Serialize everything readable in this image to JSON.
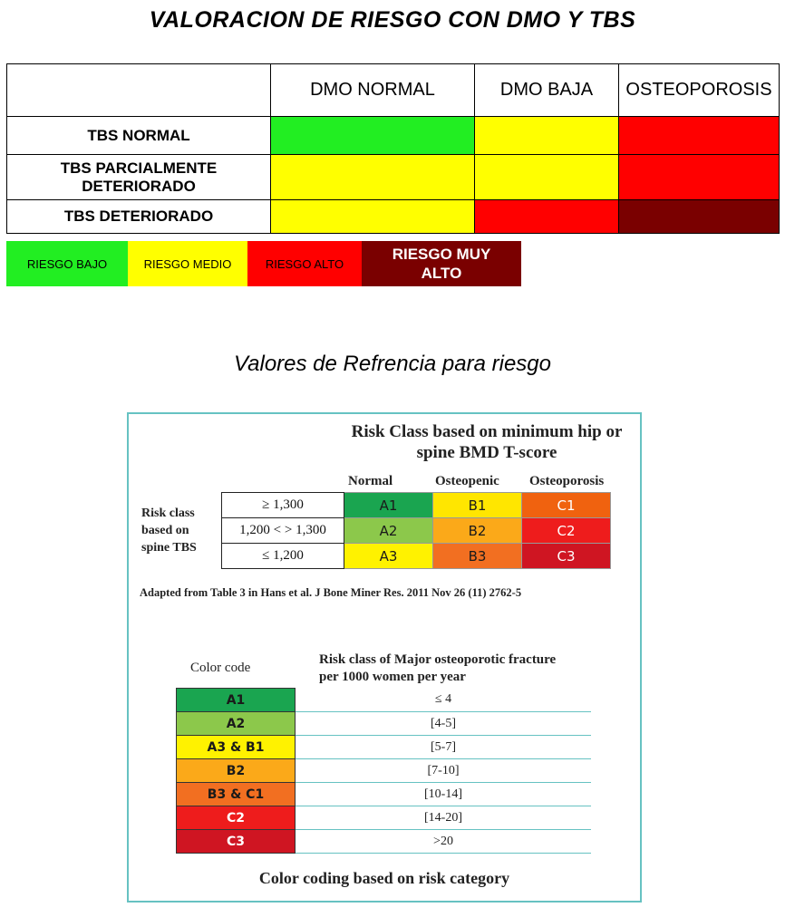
{
  "title": "VALORACION DE RIESGO CON DMO Y TBS",
  "risk_table": {
    "headers": [
      "",
      "DMO NORMAL",
      "DMO BAJA",
      "OSTEOPOROSIS"
    ],
    "rows": [
      {
        "label": "TBS NORMAL",
        "cells": [
          "#22ee22",
          "#ffff00",
          "#ff0000"
        ]
      },
      {
        "label": "TBS PARCIALMENTE DETERIORADO",
        "cells": [
          "#ffff00",
          "#ffff00",
          "#ff0000"
        ]
      },
      {
        "label": "TBS DETERIORADO",
        "cells": [
          "#ffff00",
          "#ff0000",
          "#7a0000"
        ]
      }
    ]
  },
  "legend": [
    {
      "label": "RIESGO BAJO",
      "color": "#22ee22"
    },
    {
      "label": "RIESGO MEDIO",
      "color": "#ffff00"
    },
    {
      "label": "RIESGO ALTO",
      "color": "#ff0000"
    },
    {
      "label": "RIESGO MUY ALTO",
      "color": "#7a0000"
    }
  ],
  "subtitle": "Valores de Refrencia para riesgo",
  "panel": {
    "title": "Risk Class based on minimum hip or spine BMD T-score",
    "columns": [
      "Normal",
      "Osteopenic",
      "Osteoporosis"
    ],
    "row_label": "Risk class based on spine TBS",
    "thresholds": [
      "≥ 1,300",
      "1,200 < > 1,300",
      "≤ 1,200"
    ],
    "grid": [
      [
        {
          "code": "A1",
          "color": "#1aa550"
        },
        {
          "code": "B1",
          "color": "#ffe600"
        },
        {
          "code": "C1",
          "color": "#f0620f"
        }
      ],
      [
        {
          "code": "A2",
          "color": "#8cc84b"
        },
        {
          "code": "B2",
          "color": "#fba919"
        },
        {
          "code": "C2",
          "color": "#ee1c1c"
        }
      ],
      [
        {
          "code": "A3",
          "color": "#fff200"
        },
        {
          "code": "B3",
          "color": "#f26f21"
        },
        {
          "code": "C3",
          "color": "#cf1522"
        }
      ]
    ],
    "adapted": "Adapted from Table 3 in Hans et al. J Bone Miner Res. 2011 Nov 26 (11) 2762-5",
    "color_code_header": "Color code",
    "risk_header": "Risk class of Major osteoporotic fracture per 1000 women per year",
    "color_codes": [
      {
        "code": "A1",
        "value": "≤ 4",
        "color": "#1aa550"
      },
      {
        "code": "A2",
        "value": "[4-5]",
        "color": "#8cc84b"
      },
      {
        "code": "A3 & B1",
        "value": "[5-7]",
        "color": "#fff200"
      },
      {
        "code": "B2",
        "value": "[7-10]",
        "color": "#fba919"
      },
      {
        "code": "B3 & C1",
        "value": "[10-14]",
        "color": "#f26f21"
      },
      {
        "code": "C2",
        "value": "[14-20]",
        "color": "#ee1c1c"
      },
      {
        "code": "C3",
        "value": ">20",
        "color": "#cf1522"
      }
    ],
    "footer": "Color coding based on risk category"
  }
}
